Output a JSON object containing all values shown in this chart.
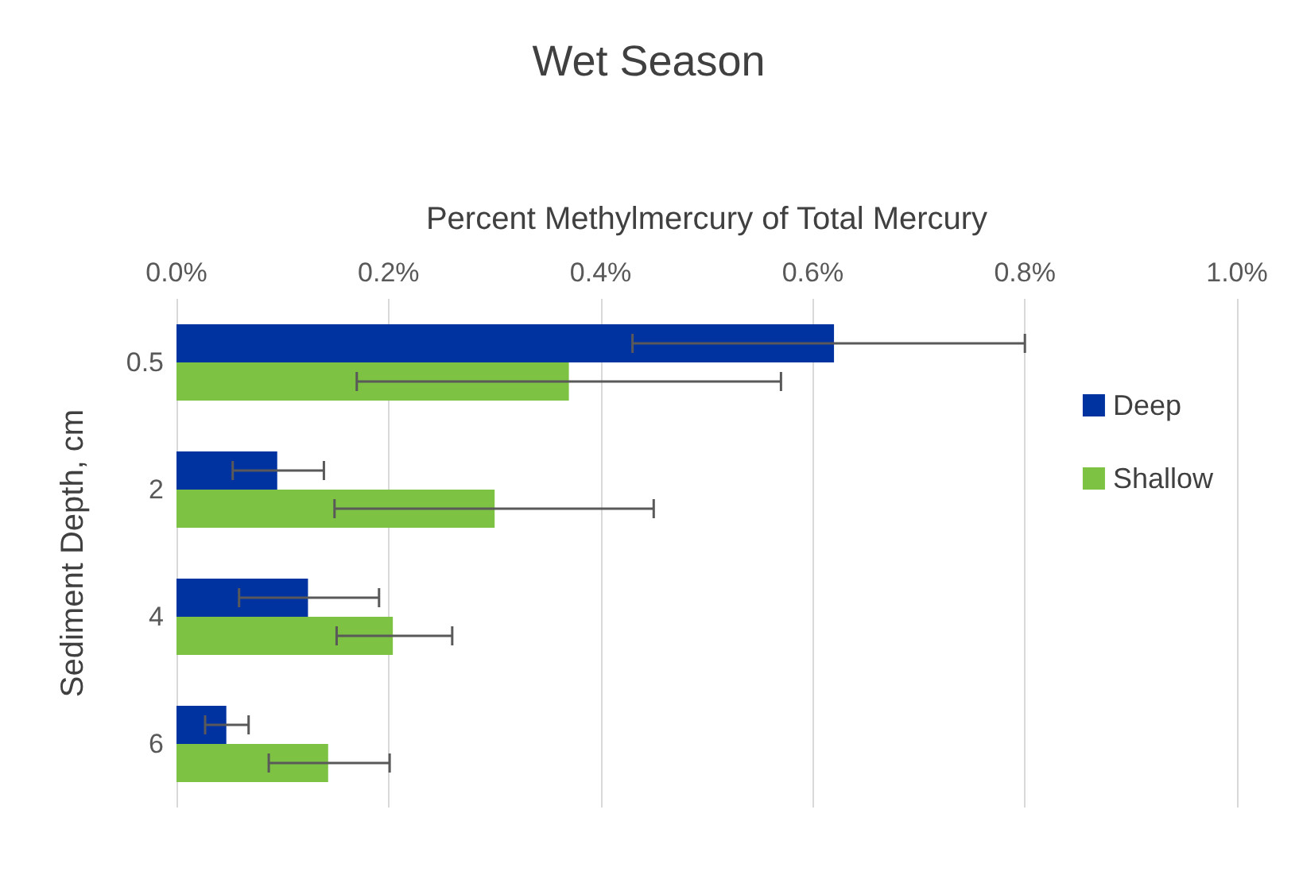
{
  "chart_data": {
    "type": "bar",
    "orientation": "horizontal",
    "title": "Wet Season",
    "xlabel": "Percent Methylmercury of Total Mercury",
    "ylabel": "Sediment Depth, cm",
    "categories": [
      "0.5",
      "2",
      "4",
      "6"
    ],
    "series": [
      {
        "name": "Deep",
        "color": "#0033a0",
        "values": [
          0.62,
          0.095,
          0.124,
          0.047
        ],
        "errors": [
          [
            0.43,
            0.8
          ],
          [
            0.053,
            0.139
          ],
          [
            0.059,
            0.191
          ],
          [
            0.027,
            0.068
          ]
        ]
      },
      {
        "name": "Shallow",
        "color": "#7dc242",
        "values": [
          0.37,
          0.3,
          0.204,
          0.143
        ],
        "errors": [
          [
            0.17,
            0.57
          ],
          [
            0.149,
            0.45
          ],
          [
            0.151,
            0.26
          ],
          [
            0.087,
            0.201
          ]
        ]
      }
    ],
    "xlim": [
      0,
      1
    ],
    "xticks": [
      {
        "value": 0,
        "label": "0.0%"
      },
      {
        "value": 0.2,
        "label": "0.2%"
      },
      {
        "value": 0.4,
        "label": "0.4%"
      },
      {
        "value": 0.6,
        "label": "0.6%"
      },
      {
        "value": 0.8,
        "label": "0.8%"
      },
      {
        "value": 1,
        "label": "1.0%"
      }
    ],
    "grid": "x",
    "legend": "right"
  }
}
